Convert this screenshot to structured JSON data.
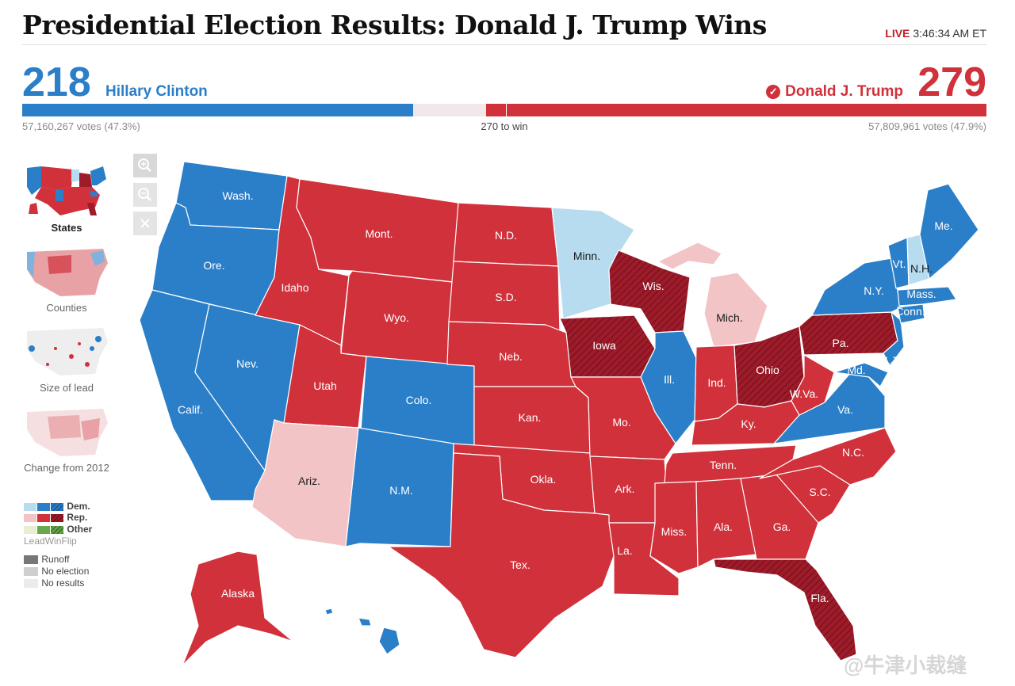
{
  "header": {
    "title": "Presidential Election Results: Donald J. Trump Wins",
    "live_tag": "LIVE",
    "live_time": "3:46:34 AM ET"
  },
  "scoreboard": {
    "dem": {
      "electoral_votes": "218",
      "name": "Hillary Clinton",
      "popular": "57,160,267 votes (47.3%)",
      "color": "#2a7fc8",
      "ev": 218
    },
    "rep": {
      "electoral_votes": "279",
      "name": "Donald J. Trump",
      "popular": "57,809,961 votes (47.9%)",
      "color": "#d0313b",
      "ev": 279
    },
    "to_win": "270 to win",
    "total_ev": 538,
    "win_threshold": 270
  },
  "zoom_controls": {
    "zoom_in_icon": "zoom-in-icon",
    "zoom_out_icon": "zoom-out-icon",
    "close_icon": "close-icon"
  },
  "view_options": [
    {
      "label": "States",
      "selected": true
    },
    {
      "label": "Counties",
      "selected": false
    },
    {
      "label": "Size of lead",
      "selected": false
    },
    {
      "label": "Change from 2012",
      "selected": false
    }
  ],
  "legend": {
    "dem": "Dem.",
    "rep": "Rep.",
    "other": "Other",
    "scale": "LeadWinFlip",
    "runoff": "Runoff",
    "no_election": "No election",
    "no_results": "No results",
    "colors": {
      "dem_lead": "#b7dcf0",
      "dem_win": "#2a7fc8",
      "rep_lead": "#f2c4c6",
      "rep_win": "#d0313b",
      "rep_flip": "#9e1b2a",
      "other_lead": "#e6efd0",
      "other_win": "#6aa84f"
    }
  },
  "map": {
    "states": [
      {
        "label": "Wash.",
        "status": "dem_win"
      },
      {
        "label": "Ore.",
        "status": "dem_win"
      },
      {
        "label": "Calif.",
        "status": "dem_win"
      },
      {
        "label": "Nev.",
        "status": "dem_win"
      },
      {
        "label": "Idaho",
        "status": "rep_win"
      },
      {
        "label": "Mont.",
        "status": "rep_win"
      },
      {
        "label": "Wyo.",
        "status": "rep_win"
      },
      {
        "label": "Utah",
        "status": "rep_win"
      },
      {
        "label": "Ariz.",
        "status": "rep_lead"
      },
      {
        "label": "Colo.",
        "status": "dem_win"
      },
      {
        "label": "N.M.",
        "status": "dem_win"
      },
      {
        "label": "N.D.",
        "status": "rep_win"
      },
      {
        "label": "S.D.",
        "status": "rep_win"
      },
      {
        "label": "Neb.",
        "status": "rep_win"
      },
      {
        "label": "Kan.",
        "status": "rep_win"
      },
      {
        "label": "Okla.",
        "status": "rep_win"
      },
      {
        "label": "Tex.",
        "status": "rep_win"
      },
      {
        "label": "Minn.",
        "status": "dem_lead"
      },
      {
        "label": "Iowa",
        "status": "rep_flip"
      },
      {
        "label": "Mo.",
        "status": "rep_win"
      },
      {
        "label": "Ark.",
        "status": "rep_win"
      },
      {
        "label": "La.",
        "status": "rep_win"
      },
      {
        "label": "Wis.",
        "status": "rep_flip"
      },
      {
        "label": "Ill.",
        "status": "dem_win"
      },
      {
        "label": "Mich.",
        "status": "rep_lead"
      },
      {
        "label": "Ind.",
        "status": "rep_win"
      },
      {
        "label": "Ohio",
        "status": "rep_flip"
      },
      {
        "label": "Ky.",
        "status": "rep_win"
      },
      {
        "label": "Tenn.",
        "status": "rep_win"
      },
      {
        "label": "Miss.",
        "status": "rep_win"
      },
      {
        "label": "Ala.",
        "status": "rep_win"
      },
      {
        "label": "Ga.",
        "status": "rep_win"
      },
      {
        "label": "Fla.",
        "status": "rep_flip"
      },
      {
        "label": "S.C.",
        "status": "rep_win"
      },
      {
        "label": "N.C.",
        "status": "rep_win"
      },
      {
        "label": "Va.",
        "status": "dem_win"
      },
      {
        "label": "W.Va.",
        "status": "rep_win"
      },
      {
        "label": "Pa.",
        "status": "rep_flip"
      },
      {
        "label": "N.Y.",
        "status": "dem_win"
      },
      {
        "label": "Md.",
        "status": "dem_win"
      },
      {
        "label": "N.J.",
        "status": "dem_win"
      },
      {
        "label": "Conn.",
        "status": "dem_win"
      },
      {
        "label": "Mass.",
        "status": "dem_win"
      },
      {
        "label": "Vt.",
        "status": "dem_win"
      },
      {
        "label": "N.H.",
        "status": "dem_lead"
      },
      {
        "label": "Me.",
        "status": "dem_win"
      },
      {
        "label": "Alaska",
        "status": "rep_win"
      },
      {
        "label": "Hawaii",
        "status": "dem_win"
      }
    ]
  },
  "watermark": "@牛津小裁缝"
}
